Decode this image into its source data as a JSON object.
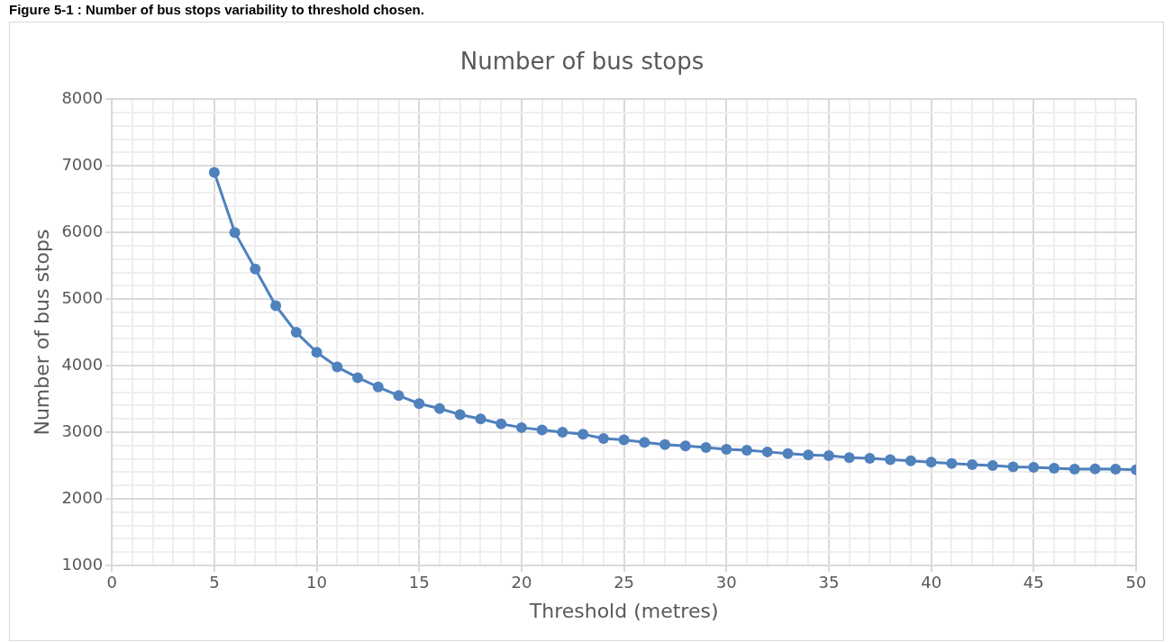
{
  "chart_data": {
    "type": "line",
    "title": "Number of bus stops",
    "xlabel": "Threshold (metres)",
    "ylabel": "Number of bus stops",
    "annotations": [
      "Figure 5-1 : Number of bus stops variability to threshold chosen."
    ],
    "x": [
      5,
      6,
      7,
      8,
      9,
      10,
      11,
      12,
      13,
      14,
      15,
      16,
      17,
      18,
      19,
      20,
      21,
      22,
      23,
      24,
      25,
      26,
      27,
      28,
      29,
      30,
      31,
      32,
      33,
      34,
      35,
      36,
      37,
      38,
      39,
      40,
      41,
      42,
      43,
      44,
      45,
      46,
      47,
      48,
      49,
      50
    ],
    "series": [
      {
        "color": "#4f81bd",
        "values": [
          6900,
          6000,
          5450,
          4900,
          4500,
          4200,
          3980,
          3820,
          3680,
          3550,
          3430,
          3355,
          3265,
          3200,
          3125,
          3070,
          3035,
          3000,
          2970,
          2905,
          2885,
          2850,
          2815,
          2795,
          2770,
          2745,
          2730,
          2705,
          2680,
          2660,
          2650,
          2620,
          2610,
          2590,
          2570,
          2550,
          2530,
          2515,
          2500,
          2480,
          2475,
          2460,
          2445,
          2450,
          2445,
          2435
        ]
      }
    ],
    "xlim": [
      0,
      50
    ],
    "xticks": [
      0,
      {
        "value": 1,
        "label": null
      },
      {
        "value": 2,
        "label": null
      },
      {
        "value": 3,
        "label": null
      },
      {
        "value": 4,
        "label": null
      },
      5,
      {
        "value": 6,
        "label": null
      },
      {
        "value": 7,
        "label": null
      },
      {
        "value": 8,
        "label": null
      },
      {
        "value": 9,
        "label": null
      },
      10,
      {
        "value": 11,
        "label": null
      },
      {
        "value": 12,
        "label": null
      },
      {
        "value": 13,
        "label": null
      },
      {
        "value": 14,
        "label": null
      },
      15,
      {
        "value": 16,
        "label": null
      },
      {
        "value": 17,
        "label": null
      },
      {
        "value": 18,
        "label": null
      },
      {
        "value": 19,
        "label": null
      },
      20,
      {
        "value": 21,
        "label": null
      },
      {
        "value": 22,
        "label": null
      },
      {
        "value": 23,
        "label": null
      },
      {
        "value": 24,
        "label": null
      },
      25,
      {
        "value": 26,
        "label": null
      },
      {
        "value": 27,
        "label": null
      },
      {
        "value": 28,
        "label": null
      },
      {
        "value": 29,
        "label": null
      },
      30,
      {
        "value": 31,
        "label": null
      },
      {
        "value": 32,
        "label": null
      },
      {
        "value": 33,
        "label": null
      },
      {
        "value": 34,
        "label": null
      },
      35,
      {
        "value": 36,
        "label": null
      },
      {
        "value": 37,
        "label": null
      },
      {
        "value": 38,
        "label": null
      },
      {
        "value": 39,
        "label": null
      },
      40,
      {
        "value": 41,
        "label": null
      },
      {
        "value": 42,
        "label": null
      },
      {
        "value": 43,
        "label": null
      },
      {
        "value": 44,
        "label": null
      },
      45,
      {
        "value": 46,
        "label": null
      },
      {
        "value": 47,
        "label": null
      },
      {
        "value": 48,
        "label": null
      },
      {
        "value": 49,
        "label": null
      },
      50
    ],
    "ylim": [
      1000,
      8000
    ],
    "yticks": [
      1000,
      {
        "value": 1200,
        "label": null
      },
      {
        "value": 1400,
        "label": null
      },
      {
        "value": 1600,
        "label": null
      },
      {
        "value": 1800,
        "label": null
      },
      2000,
      {
        "value": 2200,
        "label": null
      },
      {
        "value": 2400,
        "label": null
      },
      {
        "value": 2600,
        "label": null
      },
      {
        "value": 2800,
        "label": null
      },
      3000,
      {
        "value": 3200,
        "label": null
      },
      {
        "value": 3400,
        "label": null
      },
      {
        "value": 3600,
        "label": null
      },
      {
        "value": 3800,
        "label": null
      },
      4000,
      {
        "value": 4200,
        "label": null
      },
      {
        "value": 4400,
        "label": null
      },
      {
        "value": 4600,
        "label": null
      },
      {
        "value": 4800,
        "label": null
      },
      5000,
      {
        "value": 5200,
        "label": null
      },
      {
        "value": 5400,
        "label": null
      },
      {
        "value": 5600,
        "label": null
      },
      {
        "value": 5800,
        "label": null
      },
      6000,
      {
        "value": 6200,
        "label": null
      },
      {
        "value": 6400,
        "label": null
      },
      {
        "value": 6600,
        "label": null
      },
      {
        "value": 6800,
        "label": null
      },
      7000,
      {
        "value": 7200,
        "label": null
      },
      {
        "value": 7400,
        "label": null
      },
      {
        "value": 7600,
        "label": null
      },
      {
        "value": 7800,
        "label": null
      },
      8000
    ],
    "grid": true,
    "legend": false,
    "marker": "circle",
    "line_style": "solid"
  }
}
